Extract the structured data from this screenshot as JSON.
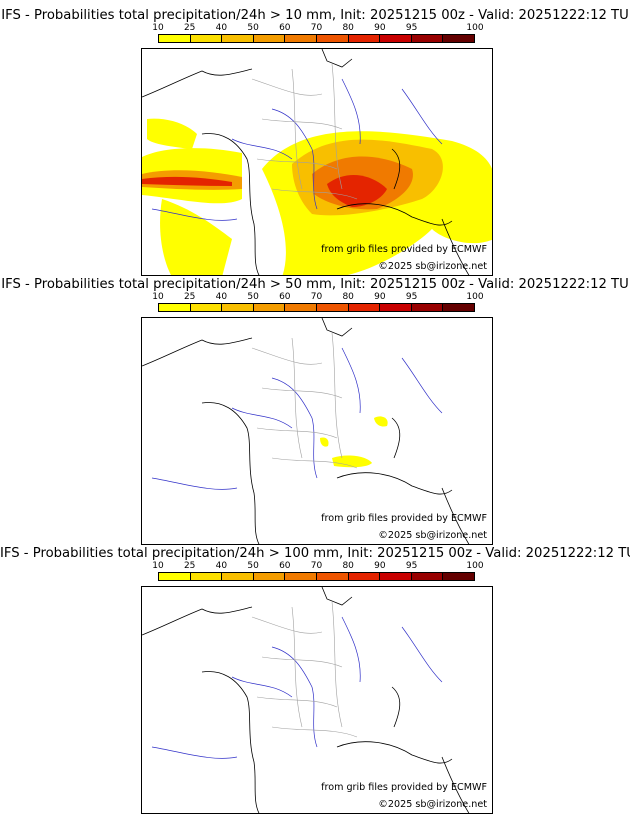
{
  "palette": [
    "#ffff00",
    "#fce000",
    "#f8bf00",
    "#f49d00",
    "#f07a00",
    "#ee5500",
    "#e42400",
    "#c80000",
    "#980000",
    "#640000"
  ],
  "colorbar_ticks": [
    "10",
    "25",
    "40",
    "50",
    "60",
    "70",
    "80",
    "90",
    "95",
    "100"
  ],
  "panels": [
    {
      "title": "IFS - Probabilities total precipitation/24h > 10 mm, Init: 20251215 00z - Valid: 20251222:12 TU",
      "credit_source": "from grib files provided by ECMWF",
      "credit_copyright": "©2025 sb@irizone.net"
    },
    {
      "title": "IFS - Probabilities total precipitation/24h > 50 mm, Init: 20251215 00z - Valid: 20251222:12 TU",
      "credit_source": "from grib files provided by ECMWF",
      "credit_copyright": "©2025 sb@irizone.net"
    },
    {
      "title": "IFS - Probabilities total precipitation/24h > 100 mm, Init: 20251215 00z - Valid: 20251222:12 TU",
      "credit_source": "from grib files provided by ECMWF",
      "credit_copyright": "©2025 sb@irizone.net"
    }
  ]
}
